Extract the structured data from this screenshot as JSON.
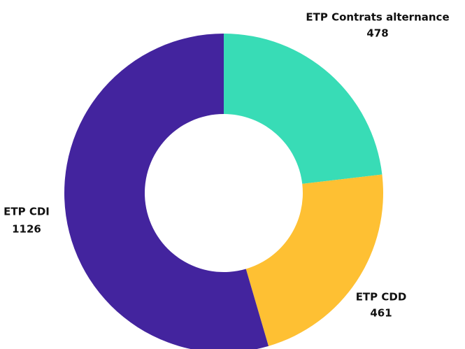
{
  "chart_data": {
    "type": "donut",
    "categories": [
      "ETP Contrats alternance",
      "ETP CDD",
      "ETP CDI"
    ],
    "values": [
      478,
      461,
      1126
    ],
    "colors": [
      "#38dcb6",
      "#fec033",
      "#43249e"
    ]
  }
}
